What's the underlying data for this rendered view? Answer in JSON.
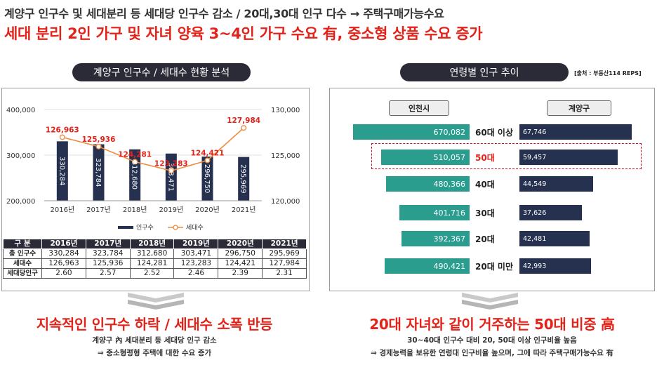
{
  "header": {
    "line1": "계양구 인구수 및 세대분리 등 세대당 인구수 감소 / 20대,30대 인구 다수 → 주택구매가능수요",
    "line2": "세대 분리 2인 가구 및 자녀 양육 3~4인 가구 수요 有, 중소형 상품 수요 증가"
  },
  "left": {
    "title": "계양구 인구수 / 세대수 현황 분석",
    "legend_population": "인구수",
    "legend_households": "세대수",
    "table": {
      "headers": [
        "구 분",
        "2016년",
        "2017년",
        "2018년",
        "2019년",
        "2020년",
        "2021년"
      ],
      "rows": [
        [
          "총 인구수",
          "330,284",
          "323,784",
          "312,680",
          "303,471",
          "296,750",
          "295,969"
        ],
        [
          "세대수",
          "126,963",
          "125,936",
          "124,281",
          "123,283",
          "124,421",
          "127,984"
        ],
        [
          "세대당인구",
          "2.60",
          "2.57",
          "2.52",
          "2.46",
          "2.39",
          "2.31"
        ]
      ]
    },
    "summary_title": "지속적인 인구수 하락 / 세대수 소폭  반등",
    "summary_line1": "계양구 內 세대분리 등 세대당 인구 감소",
    "summary_line2": "⇒ 중소형평형 주택에 대한 수요 증가"
  },
  "right": {
    "title": "연령별 인구 추이",
    "source": "[출처 : 부동산114 REPS]",
    "col_left": "인천시",
    "col_right": "계양구",
    "summary_title": "20대 자녀와 같이 거주하는 50대 비중 高",
    "summary_line1": "30~40대 인구수 대비 20, 50대 이상 인구비율 높음",
    "summary_line2": "⇒ 경제능력을 보유한 연령대 인구비율 높으며, 그에 따라 주택구매가능수요 有"
  },
  "colors": {
    "accent_red": "#e3231a",
    "dark_navy": "#26304f",
    "teal": "#2a9d8f",
    "line_orange": "#f08a3c"
  },
  "chart_data": [
    {
      "type": "bar",
      "categories": [
        "2016년",
        "2017년",
        "2018년",
        "2019년",
        "2020년",
        "2021년"
      ],
      "series": [
        {
          "name": "인구수",
          "type": "bar",
          "axis": "left",
          "values": [
            330284,
            323784,
            312680,
            303471,
            296750,
            295969
          ],
          "labels": [
            "330,284",
            "323,784",
            "312,680",
            "303,471",
            "296,750",
            "295,969"
          ]
        },
        {
          "name": "세대수",
          "type": "line",
          "axis": "right",
          "values": [
            126963,
            125936,
            124281,
            123283,
            124421,
            127984
          ],
          "labels": [
            "126,963",
            "125,936",
            "124,281",
            "123,283",
            "124,421",
            "127,984"
          ]
        }
      ],
      "y_left": {
        "ticks": [
          "200,000",
          "300,000",
          "400,000"
        ],
        "range": [
          200000,
          400000
        ]
      },
      "y_right": {
        "ticks": [
          "120,000",
          "125,000",
          "130,000"
        ],
        "range": [
          120000,
          130000
        ]
      },
      "legend": "bottom"
    },
    {
      "type": "bar",
      "orientation": "horizontal-butterfly",
      "categories": [
        "60대 이상",
        "50대",
        "40대",
        "30대",
        "20대",
        "20대 미만"
      ],
      "highlight": "50대",
      "series": [
        {
          "name": "인천시",
          "values": [
            670082,
            510057,
            480366,
            401716,
            392367,
            490421
          ],
          "labels": [
            "670,082",
            "510,057",
            "480,366",
            "401,716",
            "392,367",
            "490,421"
          ]
        },
        {
          "name": "계양구",
          "values": [
            67746,
            59457,
            44549,
            37626,
            42481,
            42993
          ],
          "labels": [
            "67,746",
            "59,457",
            "44,549",
            "37,626",
            "42,481",
            "42,993"
          ]
        }
      ]
    }
  ]
}
